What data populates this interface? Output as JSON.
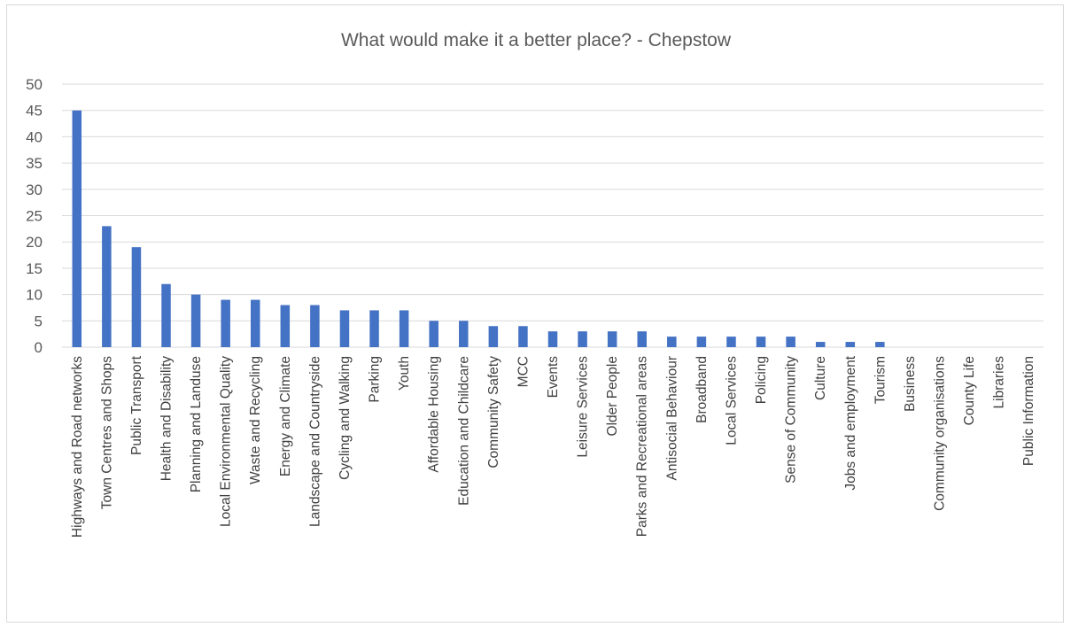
{
  "chart_data": {
    "type": "bar",
    "title": "What would make it a better place? - Chepstow",
    "xlabel": "",
    "ylabel": "",
    "ylim": [
      0,
      50
    ],
    "yticks": [
      0,
      5,
      10,
      15,
      20,
      25,
      30,
      35,
      40,
      45,
      50
    ],
    "grid": true,
    "legend": "none",
    "bar_color": "#4472C4",
    "grid_color": "#d9d9d9",
    "categories": [
      "Highways and Road networks",
      "Town Centres and Shops",
      "Public Transport",
      "Health and Disability",
      "Planning and Landuse",
      "Local Environmental Quality",
      "Waste and Recycling",
      "Energy and Climate",
      "Landscape and Countryside",
      "Cycling and Walking",
      "Parking",
      "Youth",
      "Affordable Housing",
      "Education and Childcare",
      "Community Safety",
      "MCC",
      "Events",
      "Leisure Services",
      "Older People",
      "Parks and Recreational areas",
      "Antisocial Behaviour",
      "Broadband",
      "Local Services",
      "Policing",
      "Sense of Community",
      "Culture",
      "Jobs and employment",
      "Tourism",
      "Business",
      "Community organisations",
      "County Life",
      "Libraries",
      "Public Information"
    ],
    "values": [
      45,
      23,
      19,
      12,
      10,
      9,
      9,
      8,
      8,
      7,
      7,
      7,
      5,
      5,
      4,
      4,
      3,
      3,
      3,
      3,
      2,
      2,
      2,
      2,
      2,
      1,
      1,
      1,
      0,
      0,
      0,
      0,
      0
    ]
  }
}
